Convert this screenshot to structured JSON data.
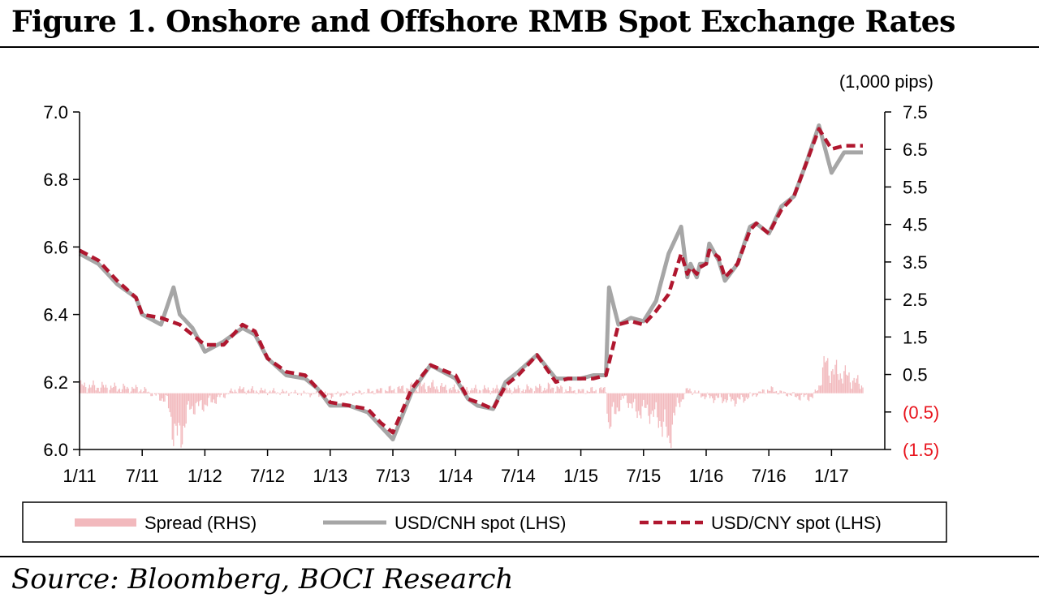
{
  "figure": {
    "title": "Figure 1. Onshore and Offshore RMB Spot Exchange Rates",
    "source": "Source: Bloomberg, BOCI Research"
  },
  "chart_data": {
    "type": "line",
    "right_axis_unit": "(1,000 pips)",
    "x_categories": [
      "1/11",
      "7/11",
      "1/12",
      "7/12",
      "1/13",
      "7/13",
      "1/14",
      "7/14",
      "1/15",
      "7/15",
      "1/16",
      "7/16",
      "1/17"
    ],
    "left_axis": {
      "ylim": [
        6.0,
        7.0
      ],
      "ticks": [
        "6.0",
        "6.2",
        "6.4",
        "6.6",
        "6.8",
        "7.0"
      ]
    },
    "right_axis": {
      "ylim": [
        -1.5,
        7.5
      ],
      "ticks": [
        "(1.5)",
        "(0.5)",
        "0.5",
        "1.5",
        "2.5",
        "3.5",
        "4.5",
        "5.5",
        "6.5",
        "7.5"
      ]
    },
    "legend": {
      "placement": "bottom",
      "items": [
        "Spread (RHS)",
        "USD/CNH spot (LHS)",
        "USD/CNY spot (LHS)"
      ]
    },
    "colors": {
      "spread": "#f2b9bd",
      "cnh": "#a6a6a6",
      "cny": "#b0172f",
      "negative_label": "#e8131c"
    },
    "series": [
      {
        "name": "USD/CNY spot (LHS)",
        "axis": "left",
        "x": [
          0,
          0.3,
          0.6,
          0.9,
          1.0,
          1.3,
          1.6,
          1.8,
          2.0,
          2.3,
          2.6,
          2.8,
          3.0,
          3.3,
          3.6,
          3.8,
          4.0,
          4.3,
          4.6,
          4.8,
          5.0,
          5.3,
          5.6,
          6.0,
          6.2,
          6.35,
          6.6,
          6.8,
          7.0,
          7.3,
          7.6,
          7.8,
          8.0,
          8.2,
          8.4,
          8.6,
          8.8,
          9.0,
          9.2,
          9.4,
          9.6,
          9.7,
          9.75,
          9.85,
          9.9,
          10.0,
          10.05,
          10.2,
          10.3,
          10.5,
          10.7,
          10.8,
          11.0,
          11.2,
          11.4,
          11.6,
          11.8,
          12.0,
          12.2,
          12.5
        ],
        "values": [
          6.59,
          6.56,
          6.5,
          6.45,
          6.4,
          6.39,
          6.37,
          6.34,
          6.31,
          6.31,
          6.37,
          6.35,
          6.27,
          6.23,
          6.22,
          6.18,
          6.14,
          6.13,
          6.12,
          6.08,
          6.05,
          6.18,
          6.25,
          6.22,
          6.15,
          6.14,
          6.12,
          6.19,
          6.22,
          6.28,
          6.2,
          6.21,
          6.21,
          6.21,
          6.22,
          6.37,
          6.38,
          6.37,
          6.41,
          6.46,
          6.58,
          6.52,
          6.54,
          6.52,
          6.54,
          6.55,
          6.59,
          6.57,
          6.51,
          6.55,
          6.65,
          6.67,
          6.64,
          6.71,
          6.75,
          6.85,
          6.95,
          6.89,
          6.9,
          6.9
        ]
      },
      {
        "name": "USD/CNH spot (LHS)",
        "axis": "left",
        "x": [
          0,
          0.3,
          0.6,
          0.9,
          1.0,
          1.3,
          1.5,
          1.6,
          1.8,
          2.0,
          2.3,
          2.6,
          2.8,
          3.0,
          3.3,
          3.6,
          3.8,
          4.0,
          4.3,
          4.6,
          4.8,
          5.0,
          5.3,
          5.6,
          6.0,
          6.2,
          6.35,
          6.6,
          6.8,
          7.0,
          7.3,
          7.6,
          7.8,
          8.0,
          8.2,
          8.4,
          8.45,
          8.6,
          8.8,
          9.0,
          9.2,
          9.4,
          9.6,
          9.7,
          9.75,
          9.85,
          9.9,
          10.0,
          10.05,
          10.2,
          10.3,
          10.5,
          10.7,
          10.8,
          11.0,
          11.2,
          11.4,
          11.6,
          11.8,
          12.0,
          12.2,
          12.5
        ],
        "values": [
          6.58,
          6.55,
          6.49,
          6.45,
          6.4,
          6.37,
          6.48,
          6.4,
          6.36,
          6.29,
          6.32,
          6.36,
          6.34,
          6.27,
          6.22,
          6.21,
          6.18,
          6.13,
          6.13,
          6.11,
          6.07,
          6.03,
          6.17,
          6.25,
          6.21,
          6.15,
          6.13,
          6.12,
          6.2,
          6.23,
          6.28,
          6.21,
          6.21,
          6.21,
          6.22,
          6.22,
          6.48,
          6.37,
          6.39,
          6.38,
          6.44,
          6.58,
          6.66,
          6.51,
          6.55,
          6.51,
          6.55,
          6.55,
          6.61,
          6.56,
          6.5,
          6.55,
          6.66,
          6.67,
          6.64,
          6.72,
          6.75,
          6.85,
          6.96,
          6.82,
          6.88,
          6.88
        ]
      },
      {
        "name": "Spread (RHS)",
        "axis": "right",
        "x": [
          0,
          0.5,
          1.0,
          1.4,
          1.5,
          1.6,
          1.75,
          2.0,
          2.5,
          3.0,
          4.0,
          5.0,
          5.6,
          6.0,
          7.0,
          7.5,
          8.0,
          8.4,
          8.45,
          8.5,
          8.7,
          8.9,
          9.0,
          9.2,
          9.35,
          9.4,
          9.45,
          9.55,
          9.6,
          9.7,
          9.8,
          10.0,
          10.5,
          11.0,
          11.5,
          11.7,
          11.8,
          11.9,
          12.0,
          12.2,
          12.5
        ],
        "values": [
          0.2,
          0.15,
          0.1,
          -0.2,
          -1.0,
          -1.2,
          -0.4,
          -0.3,
          0.1,
          0.05,
          -0.05,
          0.1,
          0.2,
          0.1,
          0.1,
          0.15,
          0.05,
          0.1,
          -1.0,
          -0.6,
          -0.1,
          -0.5,
          -0.4,
          -0.6,
          -0.9,
          -1.4,
          -0.8,
          -0.3,
          -0.2,
          0.1,
          0.05,
          -0.1,
          -0.2,
          0.1,
          -0.1,
          -0.1,
          0.2,
          0.8,
          0.6,
          0.5,
          0.2
        ]
      }
    ]
  }
}
